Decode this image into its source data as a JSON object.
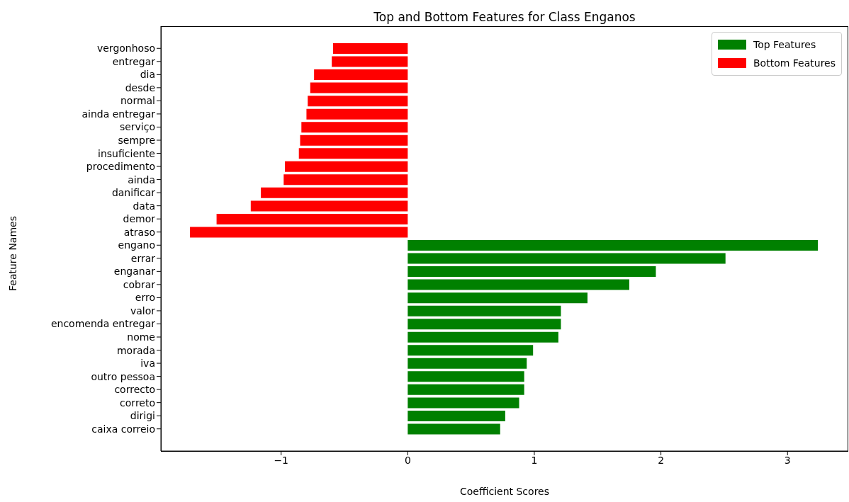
{
  "chart_data": {
    "type": "bar",
    "orientation": "horizontal",
    "title": "Top and Bottom Features for Class Enganos",
    "xlabel": "Coefficient Scores",
    "ylabel": "Feature Names",
    "categories": [
      "vergonhoso",
      "entregar",
      "dia",
      "desde",
      "normal",
      "ainda entregar",
      "serviço",
      "sempre",
      "insuficiente",
      "procedimento",
      "ainda",
      "danificar",
      "data",
      "demor",
      "atraso",
      "engano",
      "errar",
      "enganar",
      "cobrar",
      "erro",
      "valor",
      "encomenda entregar",
      "nome",
      "morada",
      "iva",
      "outro pessoa",
      "correcto",
      "correto",
      "dirigi",
      "caixa correio"
    ],
    "series": [
      {
        "name": "Top Features",
        "color": "#008000",
        "values": [
          null,
          null,
          null,
          null,
          null,
          null,
          null,
          null,
          null,
          null,
          null,
          null,
          null,
          null,
          null,
          3.24,
          2.51,
          1.96,
          1.75,
          1.42,
          1.21,
          1.21,
          1.19,
          0.99,
          0.94,
          0.92,
          0.92,
          0.88,
          0.77,
          0.73
        ]
      },
      {
        "name": "Bottom Features",
        "color": "#ff0000",
        "values": [
          -0.59,
          -0.6,
          -0.74,
          -0.77,
          -0.79,
          -0.8,
          -0.84,
          -0.85,
          -0.86,
          -0.97,
          -0.98,
          -1.16,
          -1.24,
          -1.51,
          -1.72,
          null,
          null,
          null,
          null,
          null,
          null,
          null,
          null,
          null,
          null,
          null,
          null,
          null,
          null,
          null
        ]
      }
    ],
    "xlim": [
      -1.95,
      3.48
    ],
    "xticks": [
      {
        "value": -1,
        "label": "−1"
      },
      0,
      1,
      2,
      3
    ],
    "grid": false,
    "legend": "top right"
  }
}
